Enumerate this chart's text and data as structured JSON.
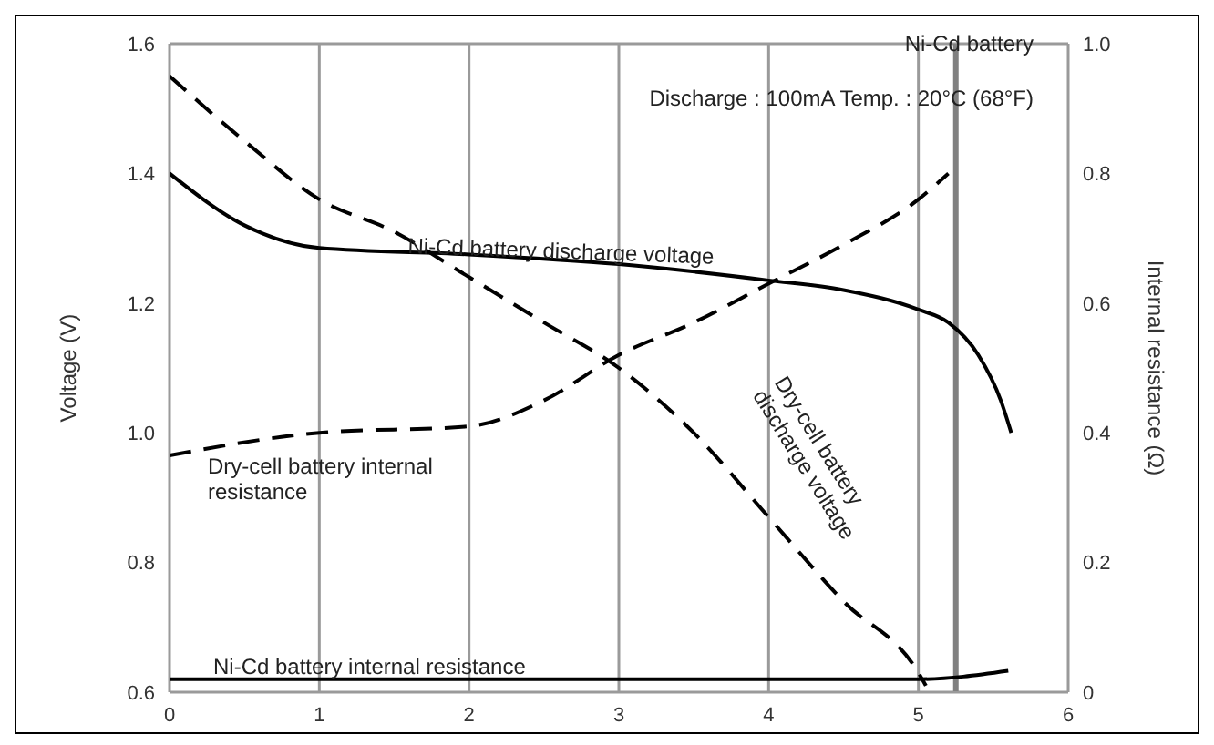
{
  "chart_data": {
    "type": "line",
    "ylabel": "Voltage (V)",
    "y2label": "Internal resistance (Ω)",
    "annotations": [
      "Ni-Cd battery",
      "Discharge : 100mA  Temp. : 20°C (68°F)"
    ],
    "xlim": [
      0,
      6
    ],
    "xticks": [
      0,
      1,
      2,
      3,
      4,
      5,
      6
    ],
    "ylim": [
      0.6,
      1.6
    ],
    "yticks": [
      0.6,
      0.8,
      {
        "value": 1,
        "label": "1.0"
      },
      1.2,
      1.4,
      1.6
    ],
    "y2lim": [
      0,
      1
    ],
    "y2ticks": [
      0,
      0.2,
      0.4,
      0.6,
      0.8,
      {
        "value": 1,
        "label": "1.0"
      }
    ],
    "grid": true,
    "marker": "none",
    "ref_lines": [
      {
        "axis": "x",
        "value": 5.25,
        "color": "#808080"
      }
    ],
    "series": [
      {
        "name": "Ni-Cd battery discharge voltage",
        "color": "#000000",
        "line_style": "solid",
        "x": [
          0,
          0.5,
          1,
          2,
          3,
          4,
          4.5,
          5,
          5.2,
          5.4,
          5.55,
          5.62
        ],
        "values": [
          1.4,
          1.32,
          1.285,
          1.275,
          1.26,
          1.235,
          1.22,
          1.19,
          1.17,
          1.12,
          1.05,
          1.0
        ]
      },
      {
        "name": "Dry-cell battery discharge voltage",
        "color": "#000000",
        "line_style": "dashed",
        "x": [
          0,
          0.5,
          1,
          1.5,
          2,
          2.5,
          3,
          3.5,
          4,
          4.5,
          5,
          5.05
        ],
        "values": [
          1.55,
          1.45,
          1.36,
          1.31,
          1.24,
          1.17,
          1.1,
          1.0,
          0.87,
          0.74,
          0.63,
          0.61
        ]
      },
      {
        "name": "Dry-cell battery internal resistance",
        "color": "#000000",
        "line_style": "dashed",
        "axis": "y2",
        "x": [
          0,
          1,
          2,
          2.5,
          3,
          3.5,
          4,
          4.5,
          5,
          5.2
        ],
        "values": [
          0.365,
          0.4,
          0.41,
          0.45,
          0.52,
          0.57,
          0.63,
          0.69,
          0.76,
          0.8
        ]
      },
      {
        "name": "Ni-Cd battery internal resistance",
        "color": "#000000",
        "line_style": "solid",
        "axis": "y2",
        "x": [
          0,
          1,
          2,
          3,
          4,
          4.8,
          5,
          5.6
        ],
        "values": [
          0.02,
          0.02,
          0.02,
          0.02,
          0.02,
          0.02,
          0.02,
          0.033
        ]
      }
    ]
  }
}
